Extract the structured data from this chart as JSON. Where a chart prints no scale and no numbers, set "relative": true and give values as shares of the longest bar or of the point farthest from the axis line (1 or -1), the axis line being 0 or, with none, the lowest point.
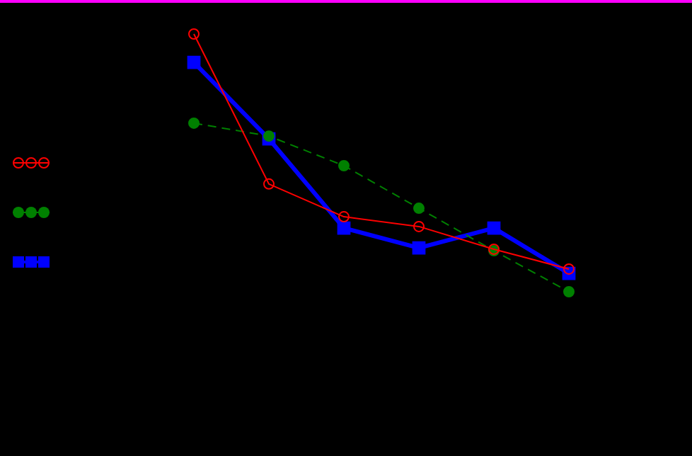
{
  "chart_data": {
    "type": "line",
    "relative": true,
    "categories": [
      null,
      null,
      null,
      null,
      null,
      null
    ],
    "series": [
      {
        "color": "#ff0000",
        "marker": "circle",
        "line_style": "solid",
        "values": [
          1,
          0.418,
          0.291,
          0.253,
          0.165,
          0.088
        ]
      },
      {
        "color": "#008000",
        "marker": "circle",
        "line_style": "dashed",
        "values": [
          0.654,
          0.604,
          0.489,
          0.324,
          0.159,
          0
        ]
      },
      {
        "color": "#0000ff",
        "marker": "square",
        "line_style": "solid",
        "values": [
          0.89,
          0.593,
          0.247,
          0.17,
          0.247,
          0.071
        ]
      }
    ]
  }
}
